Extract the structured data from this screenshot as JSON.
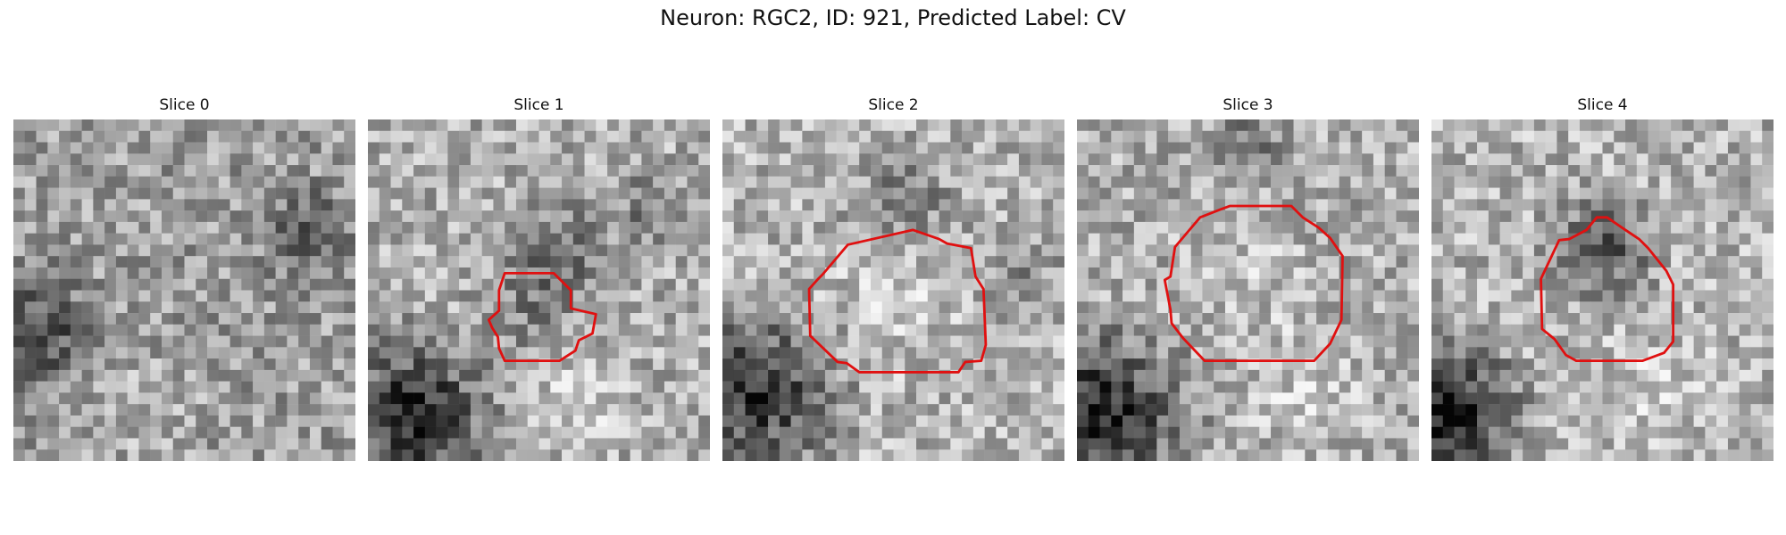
{
  "figure": {
    "title": "Neuron: RGC2, ID: 921, Predicted Label: CV",
    "contour_color": "#e01010"
  },
  "panels": [
    {
      "label": "Slice 0",
      "has_contour": false
    },
    {
      "label": "Slice 1",
      "has_contour": true
    },
    {
      "label": "Slice 2",
      "has_contour": true
    },
    {
      "label": "Slice 3",
      "has_contour": true
    },
    {
      "label": "Slice 4",
      "has_contour": true
    }
  ]
}
